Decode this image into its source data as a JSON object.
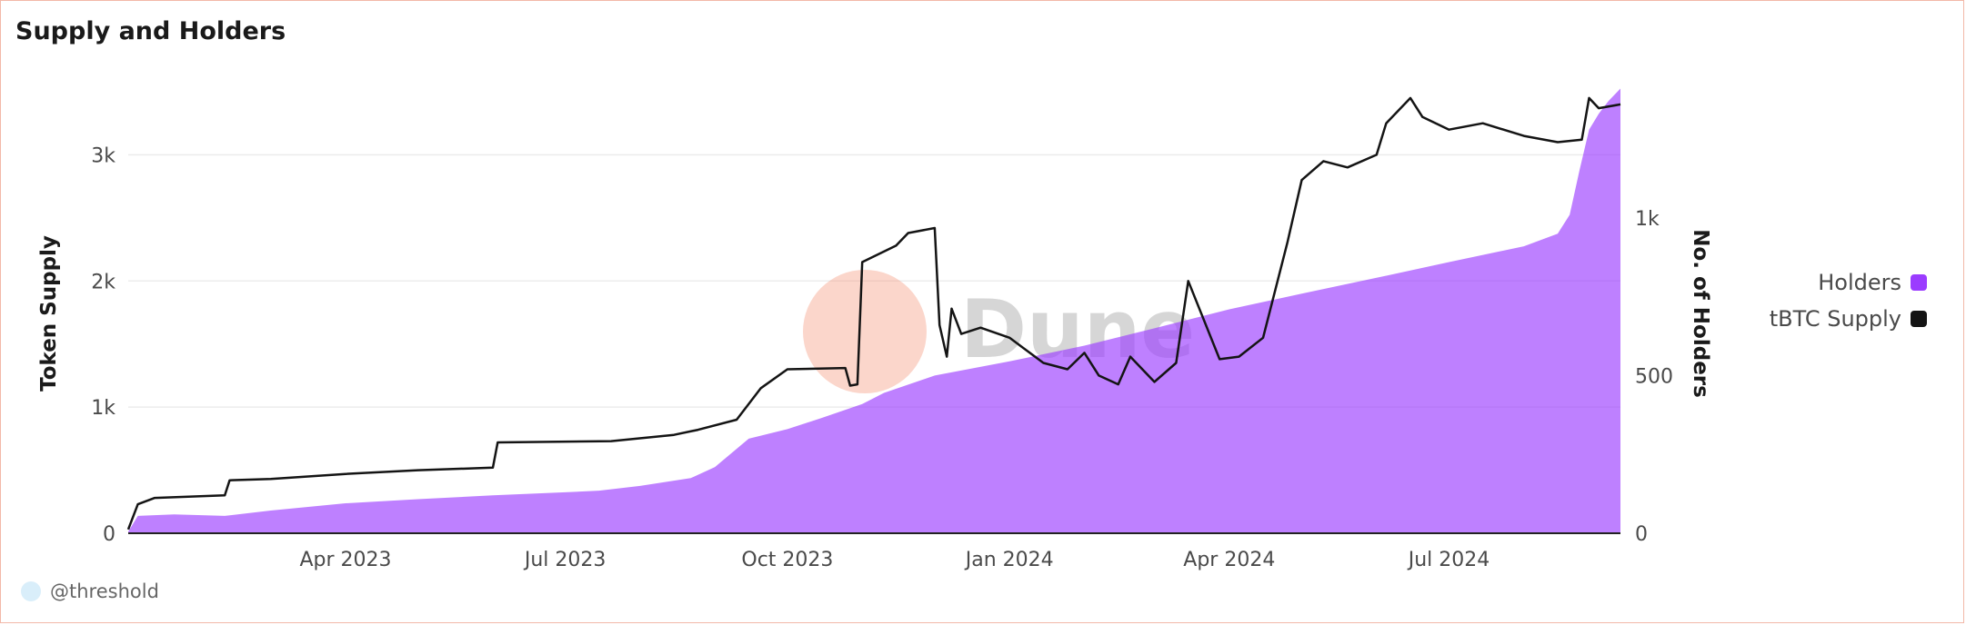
{
  "chart_data": {
    "type": "line",
    "title": "Supply and Holders",
    "x_axis": {
      "type": "date",
      "range": [
        "2023-01-01",
        "2024-09-10"
      ],
      "tick_dates": [
        "2023-04-01",
        "2023-07-01",
        "2023-10-01",
        "2024-01-01",
        "2024-04-01",
        "2024-07-01"
      ],
      "tick_labels": [
        "Apr 2023",
        "Jul 2023",
        "Oct 2023",
        "Jan 2024",
        "Apr 2024",
        "Jul 2024"
      ]
    },
    "y_left": {
      "label": "Token Supply",
      "range": [
        0,
        3500
      ],
      "ticks": [
        0,
        1000,
        2000,
        3000
      ],
      "tick_labels": [
        "0",
        "1k",
        "2k",
        "3k"
      ]
    },
    "y_right": {
      "label": "No. of Holders",
      "range": [
        0,
        1400
      ],
      "ticks": [
        0,
        500,
        1000
      ],
      "tick_labels": [
        "0",
        "500",
        "1k"
      ]
    },
    "grid": true,
    "legend_position": "right",
    "series": [
      {
        "name": "Holders",
        "type": "area",
        "axis": "right",
        "color": "#9b3cff",
        "points": [
          [
            "2023-01-01",
            5
          ],
          [
            "2023-01-05",
            55
          ],
          [
            "2023-01-20",
            60
          ],
          [
            "2023-02-10",
            55
          ],
          [
            "2023-03-01",
            72
          ],
          [
            "2023-04-01",
            95
          ],
          [
            "2023-05-01",
            108
          ],
          [
            "2023-06-01",
            120
          ],
          [
            "2023-07-01",
            130
          ],
          [
            "2023-07-15",
            135
          ],
          [
            "2023-08-01",
            150
          ],
          [
            "2023-08-22",
            175
          ],
          [
            "2023-09-01",
            210
          ],
          [
            "2023-09-08",
            255
          ],
          [
            "2023-09-15",
            300
          ],
          [
            "2023-10-01",
            330
          ],
          [
            "2023-10-15",
            365
          ],
          [
            "2023-11-01",
            410
          ],
          [
            "2023-11-10",
            445
          ],
          [
            "2023-12-01",
            500
          ],
          [
            "2024-01-01",
            545
          ],
          [
            "2024-02-01",
            595
          ],
          [
            "2024-03-01",
            650
          ],
          [
            "2024-04-01",
            710
          ],
          [
            "2024-05-01",
            760
          ],
          [
            "2024-06-01",
            810
          ],
          [
            "2024-07-01",
            860
          ],
          [
            "2024-08-01",
            910
          ],
          [
            "2024-08-15",
            950
          ],
          [
            "2024-08-20",
            1010
          ],
          [
            "2024-08-24",
            1150
          ],
          [
            "2024-08-28",
            1280
          ],
          [
            "2024-09-01",
            1330
          ],
          [
            "2024-09-05",
            1370
          ],
          [
            "2024-09-10",
            1410
          ]
        ]
      },
      {
        "name": "tBTC Supply",
        "type": "line",
        "axis": "left",
        "color": "#141414",
        "points": [
          [
            "2023-01-01",
            30
          ],
          [
            "2023-01-05",
            230
          ],
          [
            "2023-01-12",
            280
          ],
          [
            "2023-02-10",
            300
          ],
          [
            "2023-02-12",
            420
          ],
          [
            "2023-03-01",
            430
          ],
          [
            "2023-04-01",
            470
          ],
          [
            "2023-05-01",
            500
          ],
          [
            "2023-06-01",
            520
          ],
          [
            "2023-06-03",
            720
          ],
          [
            "2023-07-20",
            730
          ],
          [
            "2023-08-15",
            780
          ],
          [
            "2023-08-25",
            820
          ],
          [
            "2023-09-10",
            900
          ],
          [
            "2023-09-20",
            1150
          ],
          [
            "2023-10-01",
            1300
          ],
          [
            "2023-10-25",
            1310
          ],
          [
            "2023-10-27",
            1170
          ],
          [
            "2023-10-30",
            1180
          ],
          [
            "2023-11-01",
            2150
          ],
          [
            "2023-11-15",
            2280
          ],
          [
            "2023-11-20",
            2380
          ],
          [
            "2023-12-01",
            2420
          ],
          [
            "2023-12-03",
            1650
          ],
          [
            "2023-12-06",
            1400
          ],
          [
            "2023-12-08",
            1780
          ],
          [
            "2023-12-12",
            1580
          ],
          [
            "2023-12-20",
            1630
          ],
          [
            "2024-01-01",
            1550
          ],
          [
            "2024-01-15",
            1350
          ],
          [
            "2024-01-25",
            1300
          ],
          [
            "2024-02-01",
            1430
          ],
          [
            "2024-02-07",
            1250
          ],
          [
            "2024-02-15",
            1180
          ],
          [
            "2024-02-20",
            1400
          ],
          [
            "2024-03-01",
            1200
          ],
          [
            "2024-03-10",
            1350
          ],
          [
            "2024-03-15",
            2000
          ],
          [
            "2024-03-28",
            1380
          ],
          [
            "2024-04-05",
            1400
          ],
          [
            "2024-04-15",
            1550
          ],
          [
            "2024-04-25",
            2300
          ],
          [
            "2024-05-01",
            2800
          ],
          [
            "2024-05-10",
            2950
          ],
          [
            "2024-05-20",
            2900
          ],
          [
            "2024-06-01",
            3000
          ],
          [
            "2024-06-05",
            3250
          ],
          [
            "2024-06-15",
            3450
          ],
          [
            "2024-06-20",
            3300
          ],
          [
            "2024-07-01",
            3200
          ],
          [
            "2024-07-15",
            3250
          ],
          [
            "2024-08-01",
            3150
          ],
          [
            "2024-08-15",
            3100
          ],
          [
            "2024-08-25",
            3120
          ],
          [
            "2024-08-28",
            3450
          ],
          [
            "2024-09-01",
            3370
          ],
          [
            "2024-09-10",
            3400
          ]
        ]
      }
    ]
  },
  "watermark": {
    "text": "Dune"
  },
  "credit": {
    "handle": "@threshold"
  }
}
